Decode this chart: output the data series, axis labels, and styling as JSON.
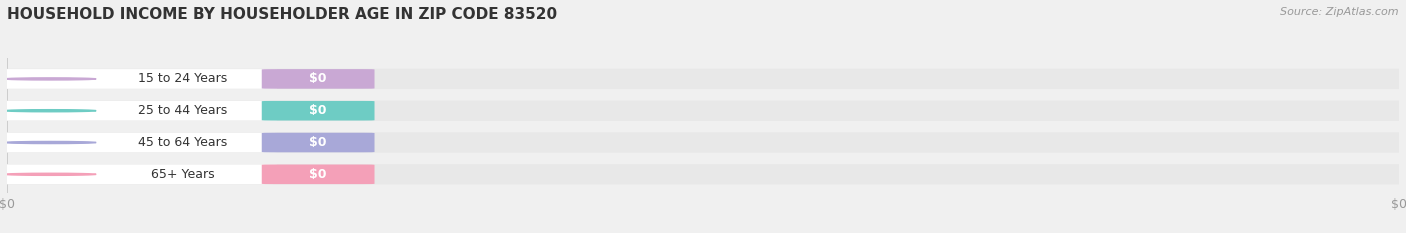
{
  "title": "HOUSEHOLD INCOME BY HOUSEHOLDER AGE IN ZIP CODE 83520",
  "source": "Source: ZipAtlas.com",
  "categories": [
    "15 to 24 Years",
    "25 to 44 Years",
    "45 to 64 Years",
    "65+ Years"
  ],
  "values": [
    0,
    0,
    0,
    0
  ],
  "bar_colors": [
    "#c9a8d4",
    "#6eccc4",
    "#a8a8d8",
    "#f4a0b8"
  ],
  "background_color": "#f0f0f0",
  "bar_bg_color": "#e8e8e8",
  "title_fontsize": 11,
  "source_fontsize": 8,
  "tick_fontsize": 9,
  "label_fontsize": 9
}
